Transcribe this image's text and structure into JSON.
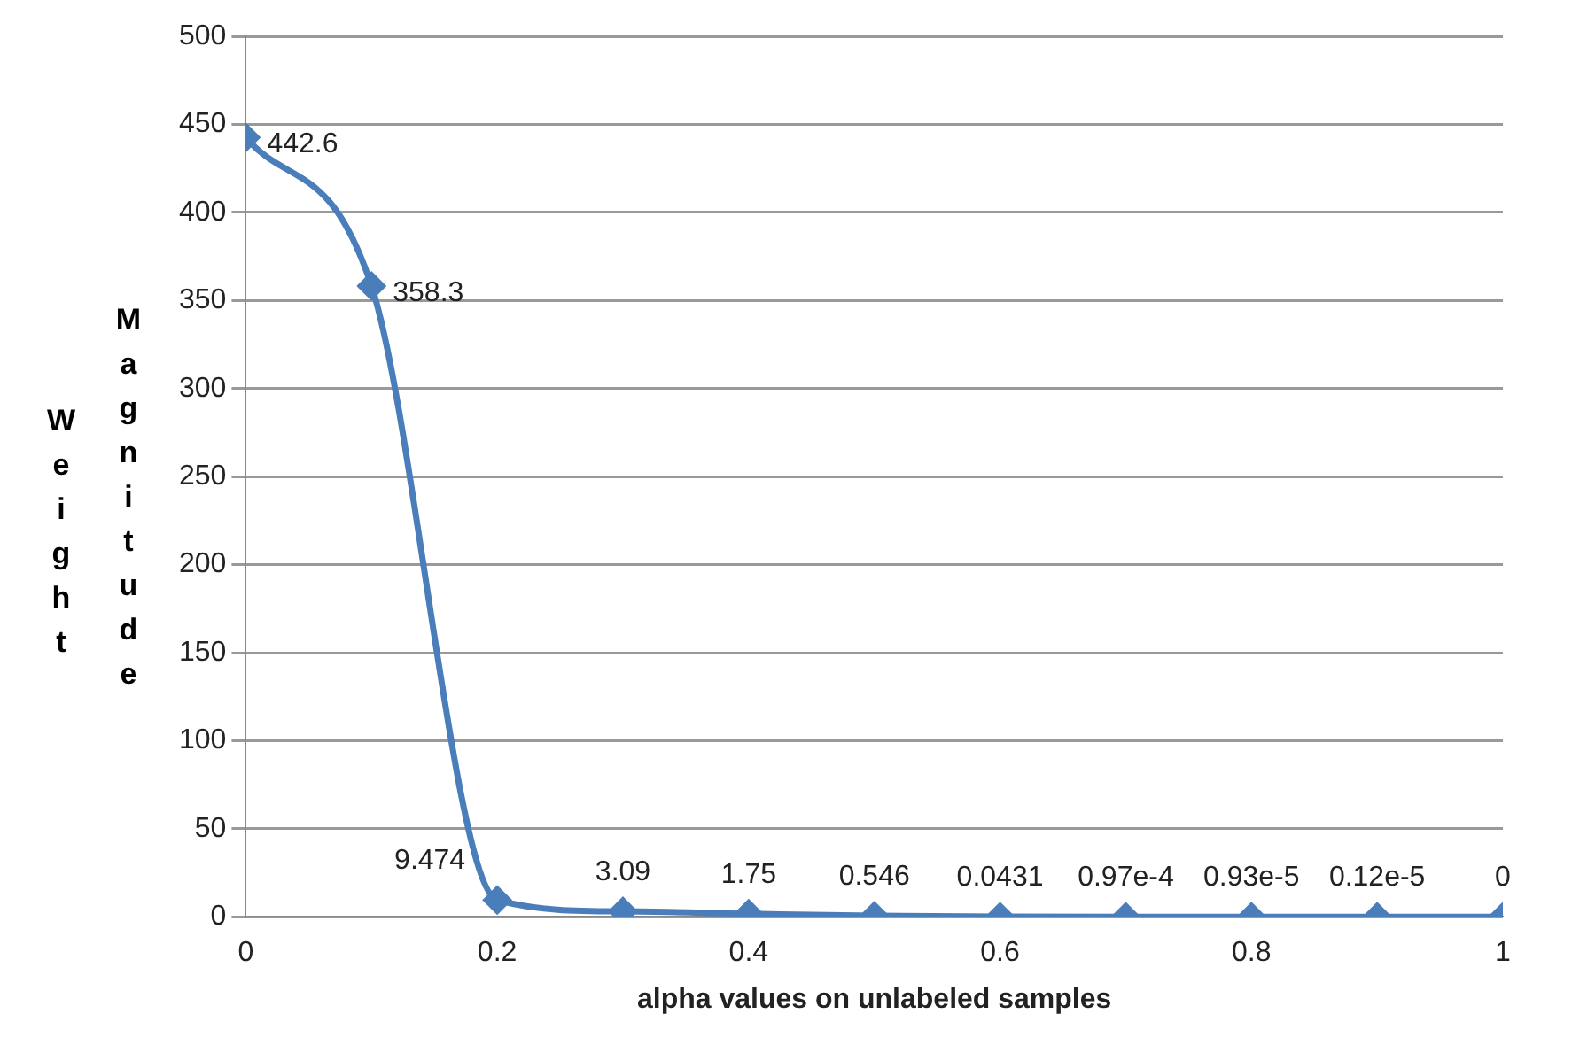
{
  "chart_data": {
    "type": "line",
    "xlabel": "alpha values on unlabeled samples",
    "ylabel": "Weight Magnitude",
    "x": [
      0,
      0.1,
      0.2,
      0.3,
      0.4,
      0.5,
      0.6,
      0.7,
      0.8,
      0.9,
      1
    ],
    "series": [
      {
        "color": "#4a7ebb",
        "values": [
          442.6,
          358.3,
          9.474,
          3.09,
          1.75,
          0.546,
          0.0431,
          9.7e-05,
          9.3e-06,
          1.2e-06,
          0
        ],
        "value_labels": [
          "442.6",
          "358.3",
          "9.474",
          "3.09",
          "1.75",
          "0.546",
          "0.0431",
          "0.97e-4",
          "0.93e-5",
          "0.12e-5",
          "0"
        ]
      }
    ],
    "xlim": [
      0,
      1
    ],
    "xticks": [
      0,
      0.2,
      0.4,
      0.6,
      0.8,
      1
    ],
    "ylim": [
      0,
      500
    ],
    "yticks": [
      0,
      50,
      100,
      150,
      200,
      250,
      300,
      350,
      400,
      450,
      500
    ],
    "grid": "y",
    "legend": false,
    "marker": "diamond",
    "line_style": "solid"
  }
}
